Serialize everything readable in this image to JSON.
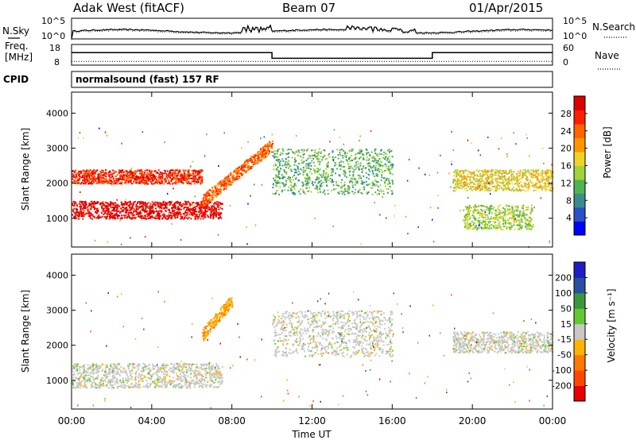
{
  "header": {
    "title": "Adak West (fitACF)",
    "beam": "Beam 07",
    "date": "01/Apr/2015"
  },
  "noise_panel": {
    "left_label": "N.Sky",
    "right_label": "N.Search",
    "left_ticks": [
      "10^5",
      "10^0"
    ],
    "right_ticks": [
      "10^5",
      "10^0"
    ]
  },
  "freq_panel": {
    "left_label_1": "Freq.",
    "left_label_2": "[MHz]",
    "right_label": "Nave",
    "left_ticks": [
      "18",
      "8"
    ],
    "right_ticks": [
      "60",
      "0"
    ]
  },
  "cpid_panel": {
    "label": "CPID",
    "program": "normalsound (fast) 157 RF"
  },
  "power_panel": {
    "ylabel": "Slant Range [km]",
    "yticks": [
      "1000",
      "2000",
      "3000",
      "4000"
    ],
    "colorbar_label": "Power [dB]",
    "colorbar_ticks": [
      "4",
      "8",
      "12",
      "16",
      "20",
      "24",
      "28"
    ],
    "colors": [
      "#0000ff",
      "#2850c8",
      "#3c8c8c",
      "#50b450",
      "#a0d23c",
      "#f0d228",
      "#ff9600",
      "#ff6400",
      "#ff1e00",
      "#dc0000"
    ]
  },
  "velocity_panel": {
    "ylabel": "Slant Range [km]",
    "yticks": [
      "1000",
      "2000",
      "3000",
      "4000"
    ],
    "colorbar_label": "Velocity [m s⁻¹]",
    "colorbar_ticks": [
      "-200",
      "-100",
      "-50",
      "-15",
      "15",
      "50",
      "100",
      "200"
    ],
    "colors": [
      "#e60000",
      "#ff4600",
      "#ff7800",
      "#ffb400",
      "#c8c8c8",
      "#64c832",
      "#3c963c",
      "#2850a0",
      "#1e1ec8"
    ]
  },
  "time_axis": {
    "ticks": [
      "00:00",
      "04:00",
      "08:00",
      "12:00",
      "16:00",
      "20:00",
      "00:00"
    ],
    "label": "Time UT"
  },
  "chart_data": {
    "type": "heatmap",
    "x_range_hours": [
      0,
      24
    ],
    "y_range_km": [
      180,
      4600
    ],
    "frequency_mhz": [
      {
        "from": 0,
        "to": 10,
        "value": 14
      },
      {
        "from": 10,
        "to": 18,
        "value": 10
      },
      {
        "from": 18,
        "to": 24,
        "value": 14
      }
    ],
    "nave": 8,
    "power_features": [
      {
        "band": "lower strong band",
        "t_start": 0,
        "t_end": 7.5,
        "range_km": [
          1000,
          1500
        ],
        "power_db": 28
      },
      {
        "band": "upper band",
        "t_start": 0,
        "t_end": 6.5,
        "range_km": [
          2000,
          2400
        ],
        "power_db": 24
      },
      {
        "band": "rising band",
        "t_start": 6.5,
        "t_end": 10,
        "range_km": [
          1500,
          3100
        ],
        "power_db": 20
      },
      {
        "band": "afternoon band",
        "t_start": 10,
        "t_end": 16,
        "range_km": [
          1700,
          3000
        ],
        "power_db": 8
      },
      {
        "band": "evening band",
        "t_start": 19,
        "t_end": 24,
        "range_km": [
          1800,
          2400
        ],
        "power_db": 16
      },
      {
        "band": "late band",
        "t_start": 19.5,
        "t_end": 23,
        "range_km": [
          700,
          1400
        ],
        "power_db": 12
      }
    ],
    "velocity_features": [
      {
        "band": "lower band",
        "t_start": 0,
        "t_end": 7.5,
        "range_km": [
          800,
          1500
        ],
        "velocity": 0
      },
      {
        "band": "rising band",
        "t_start": 6.5,
        "t_end": 8,
        "range_km": [
          2300,
          3300
        ],
        "velocity": -50
      },
      {
        "band": "afternoon band",
        "t_start": 10,
        "t_end": 16,
        "range_km": [
          1700,
          3000
        ],
        "velocity": -15
      },
      {
        "band": "evening band",
        "t_start": 19,
        "t_end": 24,
        "range_km": [
          1800,
          2400
        ],
        "velocity": 0
      }
    ]
  }
}
